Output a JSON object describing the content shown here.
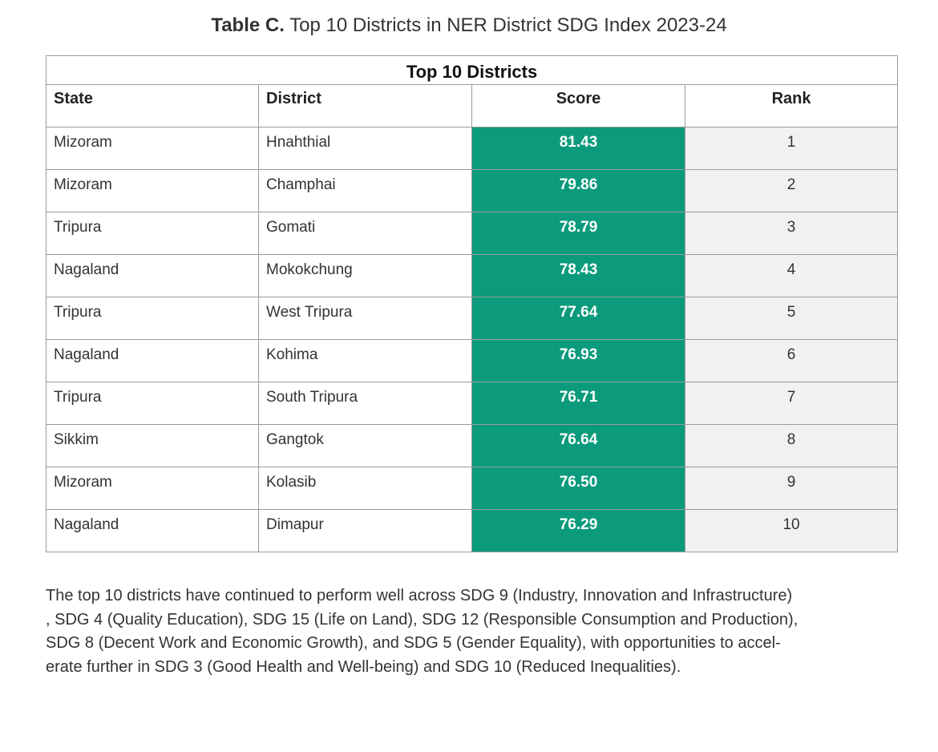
{
  "caption": {
    "label": "Table C.",
    "text": "Top 10 Districts in NER District SDG Index 2023-24"
  },
  "table": {
    "title": "Top 10 Districts",
    "headers": [
      "State",
      "District",
      "Score",
      "Rank"
    ],
    "rows": [
      {
        "state": "Mizoram",
        "district": "Hnahthial",
        "score": "81.43",
        "rank": "1"
      },
      {
        "state": "Mizoram",
        "district": "Champhai",
        "score": "79.86",
        "rank": "2"
      },
      {
        "state": "Tripura",
        "district": "Gomati",
        "score": "78.79",
        "rank": "3"
      },
      {
        "state": "Nagaland",
        "district": "Mokokchung",
        "score": "78.43",
        "rank": "4"
      },
      {
        "state": "Tripura",
        "district": "West Tripura",
        "score": "77.64",
        "rank": "5"
      },
      {
        "state": "Nagaland",
        "district": "Kohima",
        "score": "76.93",
        "rank": "6"
      },
      {
        "state": "Tripura",
        "district": "South Tripura",
        "score": "76.71",
        "rank": "7"
      },
      {
        "state": "Sikkim",
        "district": "Gangtok",
        "score": "76.64",
        "rank": "8"
      },
      {
        "state": "Mizoram",
        "district": "Kolasib",
        "score": "76.50",
        "rank": "9"
      },
      {
        "state": "Nagaland",
        "district": "Dimapur",
        "score": "76.29",
        "rank": "10"
      }
    ]
  },
  "colors": {
    "score_fill": "#0b9b7c",
    "rank_fill": "#f1f1f2",
    "border": "#9a9a9a"
  },
  "note": {
    "lines": [
      "The top 10 districts have continued to perform well across SDG 9 (Industry, Innovation and Infrastructure)",
      ", SDG 4 (Quality Education), SDG 15 (Life on Land), SDG 12 (Responsible Consumption and Production),",
      "SDG 8 (Decent Work and Economic Growth), and SDG 5 (Gender Equality), with opportunities to accel-",
      "erate further in SDG 3 (Good Health and Well-being) and SDG 10 (Reduced Inequalities)."
    ]
  }
}
